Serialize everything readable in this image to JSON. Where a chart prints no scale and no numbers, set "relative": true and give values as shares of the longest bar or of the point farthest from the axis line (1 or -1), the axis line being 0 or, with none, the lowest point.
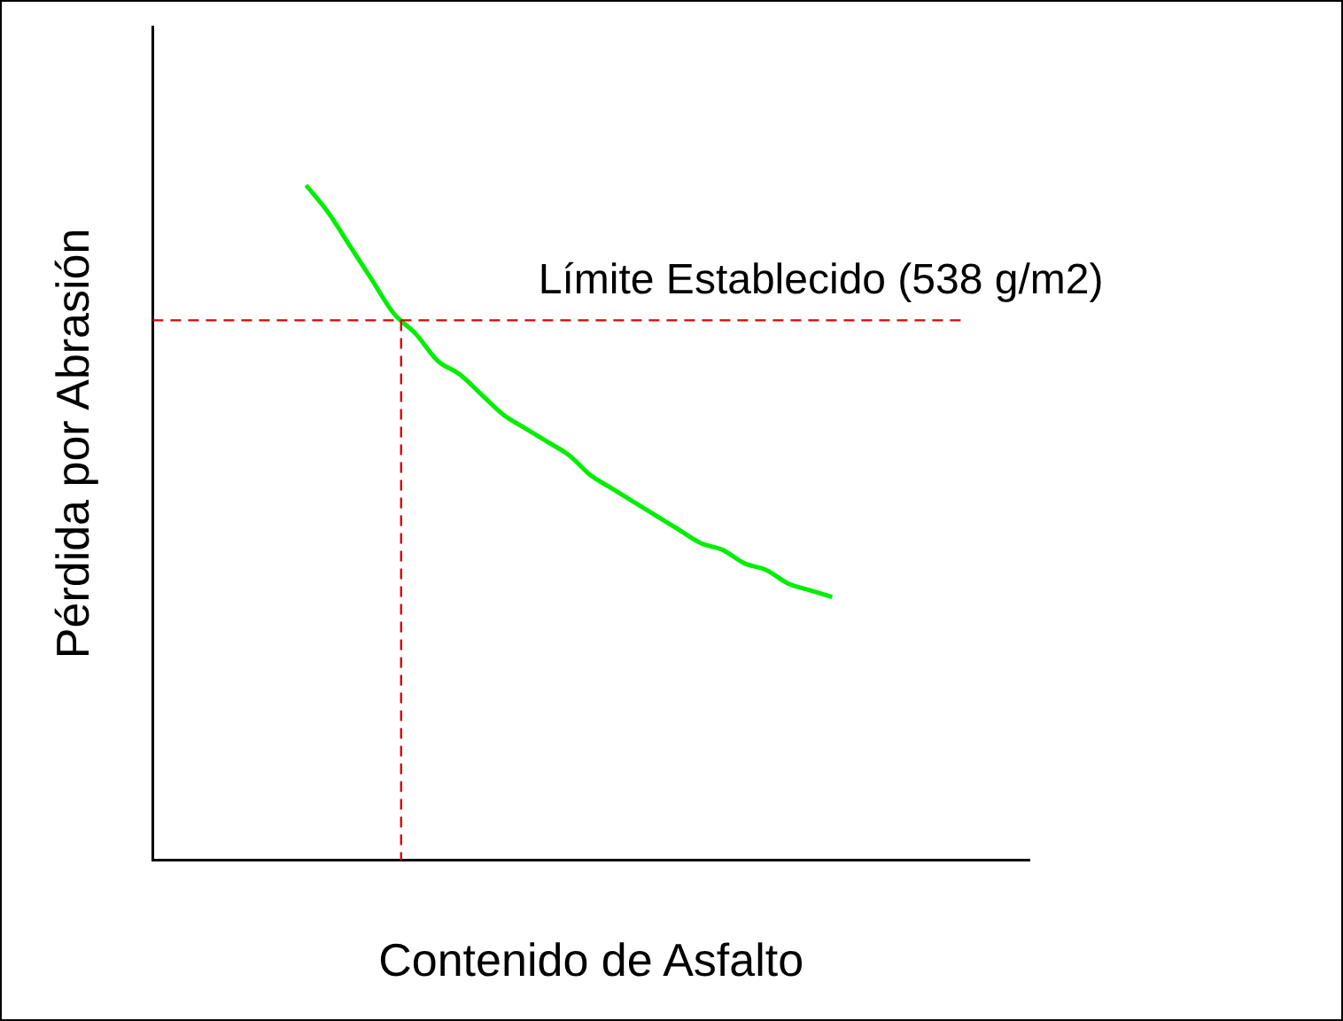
{
  "chart_data": {
    "type": "line",
    "xlabel": "Contenido de Asfalto",
    "ylabel": "Pérdida por Abrasión",
    "relative": true,
    "grid": false,
    "legend": false,
    "marker": "none",
    "line_style": "solid",
    "categories": [
      null,
      null,
      null,
      null,
      null,
      null,
      null,
      null,
      null,
      null,
      null,
      null,
      null,
      null,
      null,
      null,
      null,
      null,
      null,
      null,
      null,
      null,
      null,
      null,
      null,
      null,
      null,
      null,
      null,
      null,
      null,
      null,
      null,
      null,
      null,
      null,
      null,
      null,
      null,
      null,
      null
    ],
    "series": [
      {
        "color": "#00ee00",
        "values": [
          null,
          null,
          null,
          null,
          null,
          null,
          null,
          1.0,
          0.96,
          0.91,
          0.86,
          0.81,
          0.78,
          0.74,
          0.72,
          0.69,
          0.66,
          0.64,
          0.62,
          0.6,
          0.57,
          0.55,
          0.53,
          0.51,
          0.49,
          0.47,
          0.46,
          0.44,
          0.43,
          0.41,
          0.4,
          0.39,
          null,
          null,
          null,
          null,
          null,
          null,
          null,
          null,
          null
        ]
      }
    ],
    "ref_lines": [
      {
        "axis": "y",
        "value": 0.8,
        "label": "Límite Establecido (538 g/m2)",
        "color": "#dd0000",
        "line_style": "dashed"
      }
    ]
  }
}
